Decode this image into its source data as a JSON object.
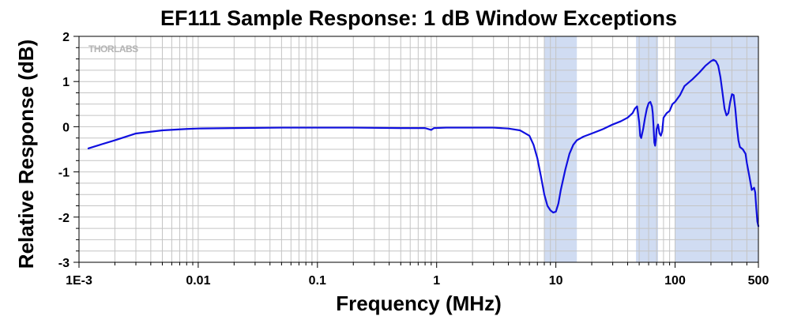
{
  "chart_data": {
    "type": "line",
    "title": "EF111 Sample Response: 1 dB Window Exceptions",
    "xlabel": "Frequency (MHz)",
    "ylabel": "Relative Response (dB)",
    "x_scale": "log",
    "xlim": [
      0.001,
      500
    ],
    "ylim": [
      -3,
      2
    ],
    "x_ticks": [
      0.001,
      0.01,
      0.1,
      1,
      10,
      100,
      500
    ],
    "x_tick_labels": [
      "1E-3",
      "0.01",
      "0.1",
      "1",
      "10",
      "100",
      "500"
    ],
    "y_ticks": [
      -3,
      -2,
      -1,
      0,
      1,
      2
    ],
    "y_tick_labels": [
      "-3",
      "-2",
      "-1",
      "0",
      "1",
      "2"
    ],
    "grid": true,
    "logo": "THORLABS",
    "line_color": "#1010e0",
    "band_color": "#d0dcf2",
    "shaded_bands": [
      {
        "x_start": 8,
        "x_end": 15
      },
      {
        "x_start": 47,
        "x_end": 72
      },
      {
        "x_start": 100,
        "x_end": 500
      }
    ],
    "series": [
      {
        "x": [
          0.0012,
          0.0015,
          0.002,
          0.003,
          0.005,
          0.008,
          0.01,
          0.02,
          0.05,
          0.1,
          0.2,
          0.5,
          0.8,
          0.9,
          0.95,
          1.2,
          2,
          3,
          4,
          5,
          6,
          6.5,
          7,
          7.5,
          8,
          8.5,
          9,
          9.5,
          10,
          10.5,
          11,
          12,
          13,
          14,
          15,
          17,
          20,
          25,
          30,
          35,
          40,
          44,
          46,
          48,
          50,
          51,
          52,
          54,
          56,
          58,
          60,
          62,
          64,
          65,
          66,
          67,
          68,
          69,
          70,
          72,
          74,
          76,
          78,
          80,
          85,
          90,
          95,
          100,
          110,
          120,
          140,
          160,
          180,
          200,
          210,
          220,
          230,
          240,
          250,
          260,
          270,
          280,
          290,
          300,
          310,
          320,
          330,
          340,
          350,
          370,
          390,
          400,
          420,
          440,
          460,
          470,
          480,
          490,
          500
        ],
        "y": [
          -0.48,
          -0.4,
          -0.3,
          -0.15,
          -0.08,
          -0.05,
          -0.04,
          -0.03,
          -0.02,
          -0.02,
          -0.02,
          -0.03,
          -0.03,
          -0.07,
          -0.03,
          -0.02,
          -0.02,
          -0.02,
          -0.04,
          -0.08,
          -0.2,
          -0.4,
          -0.7,
          -1.1,
          -1.5,
          -1.75,
          -1.85,
          -1.9,
          -1.88,
          -1.7,
          -1.4,
          -0.95,
          -0.6,
          -0.4,
          -0.3,
          -0.22,
          -0.15,
          -0.05,
          0.05,
          0.12,
          0.2,
          0.3,
          0.4,
          0.45,
          0.1,
          -0.2,
          -0.25,
          -0.05,
          0.2,
          0.4,
          0.52,
          0.55,
          0.45,
          0.3,
          0.0,
          -0.35,
          -0.42,
          -0.3,
          -0.05,
          0.05,
          -0.15,
          -0.2,
          -0.1,
          0.2,
          0.3,
          0.35,
          0.5,
          0.55,
          0.7,
          0.9,
          1.05,
          1.2,
          1.35,
          1.45,
          1.48,
          1.45,
          1.35,
          1.1,
          0.75,
          0.4,
          0.25,
          0.3,
          0.55,
          0.72,
          0.7,
          0.4,
          0.0,
          -0.3,
          -0.45,
          -0.5,
          -0.6,
          -0.8,
          -1.1,
          -1.4,
          -1.35,
          -1.45,
          -1.8,
          -2.1,
          -2.2
        ]
      }
    ]
  }
}
